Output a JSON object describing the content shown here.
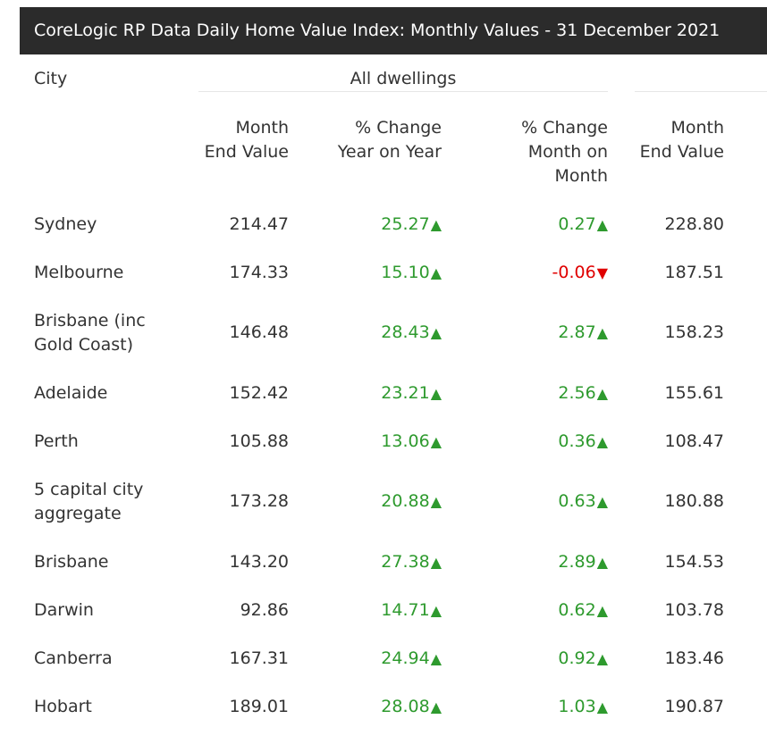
{
  "title": "CoreLogic RP Data Daily Home Value Index: Monthly Values - 31 December 2021",
  "headers": {
    "city": "City",
    "group": "All dwellings",
    "month_end_value_1": "Month",
    "month_end_value_2": "End Value",
    "yoy_1": "% Change",
    "yoy_2": "Year on Year",
    "mom_1": "% Change",
    "mom_2": "Month on",
    "mom_3": "Month",
    "col4_1": "Month",
    "col4_2": "End Value"
  },
  "colors": {
    "positive": "#2e9a2e",
    "negative": "#e00000",
    "title_bg": "#2b2b2b"
  },
  "icons": {
    "up": "▲",
    "down": "▼"
  },
  "rows": [
    {
      "city_l1": "Sydney",
      "city_l2": "",
      "value": "214.47",
      "yoy": "25.27",
      "mom": "0.27",
      "col4": "228.80"
    },
    {
      "city_l1": "Melbourne",
      "city_l2": "",
      "value": "174.33",
      "yoy": "15.10",
      "mom": "-0.06",
      "col4": "187.51"
    },
    {
      "city_l1": "Brisbane (inc",
      "city_l2": "Gold Coast)",
      "value": "146.48",
      "yoy": "28.43",
      "mom": "2.87",
      "col4": "158.23"
    },
    {
      "city_l1": "Adelaide",
      "city_l2": "",
      "value": "152.42",
      "yoy": "23.21",
      "mom": "2.56",
      "col4": "155.61"
    },
    {
      "city_l1": "Perth",
      "city_l2": "",
      "value": "105.88",
      "yoy": "13.06",
      "mom": "0.36",
      "col4": "108.47"
    },
    {
      "city_l1": "5 capital city",
      "city_l2": "aggregate",
      "value": "173.28",
      "yoy": "20.88",
      "mom": "0.63",
      "col4": "180.88"
    },
    {
      "city_l1": "Brisbane",
      "city_l2": "",
      "value": "143.20",
      "yoy": "27.38",
      "mom": "2.89",
      "col4": "154.53"
    },
    {
      "city_l1": "Darwin",
      "city_l2": "",
      "value": "92.86",
      "yoy": "14.71",
      "mom": "0.62",
      "col4": "103.78"
    },
    {
      "city_l1": "Canberra",
      "city_l2": "",
      "value": "167.31",
      "yoy": "24.94",
      "mom": "0.92",
      "col4": "183.46"
    },
    {
      "city_l1": "Hobart",
      "city_l2": "",
      "value": "189.01",
      "yoy": "28.08",
      "mom": "1.03",
      "col4": "190.87"
    }
  ]
}
